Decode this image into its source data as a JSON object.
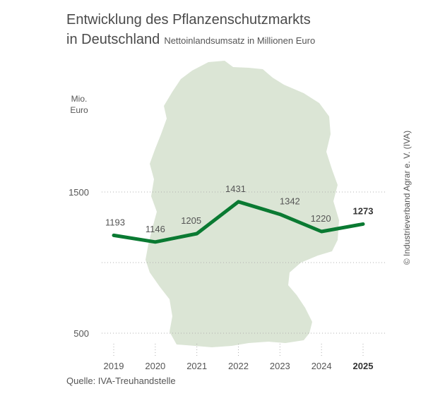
{
  "title_line1": "Entwicklung des Pflanzenschutzmarkts",
  "title_line2": "in Deutschland",
  "subtitle": "Nettoinlandsumsatz in Millionen Euro",
  "unit_line1": "Mio.",
  "unit_line2": "Euro",
  "source": "Quelle: IVA-Treuhandstelle",
  "copyright": "© Industrieverband Agrar e. V. (IVA)",
  "colors": {
    "line": "#0a7a32",
    "map": "#dbe5d5",
    "grid": "#b0b0b0"
  },
  "chart_data": {
    "type": "line",
    "x": [
      "2019",
      "2020",
      "2021",
      "2022",
      "2023",
      "2024",
      "2025"
    ],
    "series": [
      {
        "values": [
          1193,
          1146,
          1205,
          1431,
          1342,
          1220,
          1273
        ]
      }
    ],
    "data_labels": [
      "1193",
      "1146",
      "1205",
      "1431",
      "1342",
      "1220",
      "1273"
    ],
    "y_ticks": [
      500,
      1500
    ],
    "y_tick_labels": [
      "500",
      "1500"
    ],
    "ylim": [
      500,
      1500
    ],
    "highlight_last": true,
    "grid": "dotted horizontal"
  }
}
